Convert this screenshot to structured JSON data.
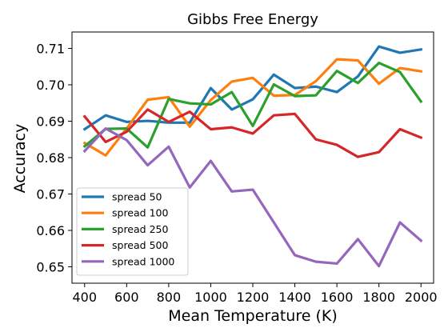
{
  "chart_data": {
    "type": "line",
    "title": "Gibbs Free Energy",
    "xlabel": "Mean Temperature (K)",
    "ylabel": "Accuracy",
    "xlim": [
      340,
      2060
    ],
    "ylim": [
      0.6455,
      0.7145
    ],
    "xticks": [
      400,
      600,
      800,
      1000,
      1200,
      1400,
      1600,
      1800,
      2000
    ],
    "xtick_labels": [
      "400",
      "600",
      "800",
      "1000",
      "1200",
      "1400",
      "1600",
      "1800",
      "2000"
    ],
    "yticks": [
      0.65,
      0.66,
      0.67,
      0.68,
      0.69,
      0.7,
      0.71
    ],
    "ytick_labels": [
      "0.65",
      "0.66",
      "0.67",
      "0.68",
      "0.69",
      "0.70",
      "0.71"
    ],
    "grid": false,
    "legend_position": "lower-left",
    "x": [
      400,
      500,
      600,
      700,
      800,
      900,
      1000,
      1100,
      1200,
      1300,
      1400,
      1500,
      1600,
      1700,
      1800,
      1900,
      2000
    ],
    "series": [
      {
        "name": "spread 50",
        "color": "#1f77b4",
        "values": [
          0.6878,
          0.6916,
          0.6898,
          0.6901,
          0.6896,
          0.6896,
          0.6991,
          0.6932,
          0.696,
          0.7028,
          0.6991,
          0.6995,
          0.698,
          0.7023,
          0.7105,
          0.7088,
          0.7097
        ]
      },
      {
        "name": "spread 100",
        "color": "#ff7f0e",
        "values": [
          0.684,
          0.6806,
          0.688,
          0.6959,
          0.6966,
          0.6885,
          0.6958,
          0.7009,
          0.7019,
          0.697,
          0.6972,
          0.701,
          0.707,
          0.7067,
          0.7003,
          0.7046,
          0.7037
        ]
      },
      {
        "name": "spread 250",
        "color": "#2ca02c",
        "values": [
          0.6831,
          0.6879,
          0.688,
          0.6828,
          0.6961,
          0.6949,
          0.6946,
          0.698,
          0.6887,
          0.7001,
          0.6969,
          0.6971,
          0.7038,
          0.7005,
          0.706,
          0.7035,
          0.6954
        ]
      },
      {
        "name": "spread 500",
        "color": "#d62728",
        "values": [
          0.6913,
          0.6843,
          0.6871,
          0.6932,
          0.6898,
          0.6926,
          0.6878,
          0.6883,
          0.6866,
          0.6916,
          0.692,
          0.685,
          0.6835,
          0.6802,
          0.6815,
          0.6878,
          0.6855
        ]
      },
      {
        "name": "spread 1000",
        "color": "#9467bd",
        "values": [
          0.6818,
          0.688,
          0.6848,
          0.6779,
          0.683,
          0.6718,
          0.6791,
          0.6707,
          0.6712,
          0.6622,
          0.6532,
          0.6514,
          0.6509,
          0.6576,
          0.6502,
          0.6622,
          0.6572
        ]
      }
    ]
  }
}
